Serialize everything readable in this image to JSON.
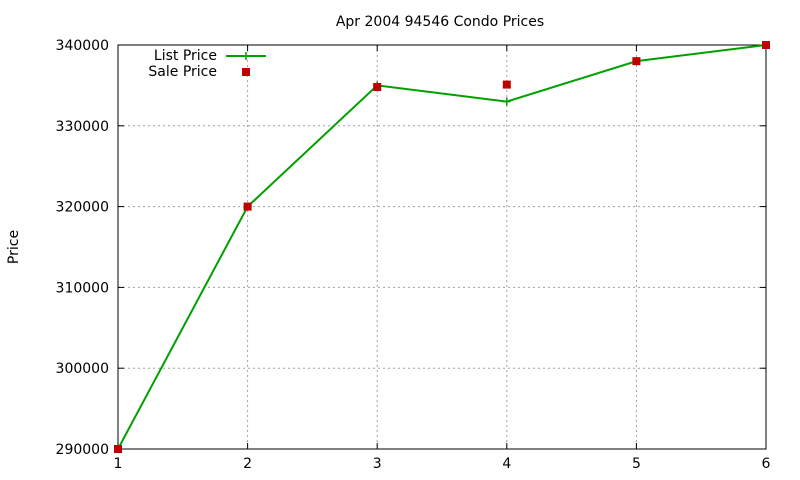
{
  "chart_data": {
    "type": "line",
    "title": "Apr 2004 94546 Condo Prices",
    "xlabel": "",
    "ylabel": "Price",
    "xlim": [
      1,
      6
    ],
    "ylim": [
      290000,
      340000
    ],
    "xticks": [
      "1",
      "2",
      "3",
      "4",
      "5",
      "6"
    ],
    "yticks": [
      "290000",
      "300000",
      "310000",
      "320000",
      "330000",
      "340000"
    ],
    "grid": true,
    "legend_position": "top-left",
    "series": [
      {
        "name": "List Price",
        "style": "line",
        "color": "#00a000",
        "marker": "plus",
        "points": [
          {
            "x": 1,
            "y": 290000
          },
          {
            "x": 2,
            "y": 320000
          },
          {
            "x": 3,
            "y": 335000
          },
          {
            "x": 4,
            "y": 333000
          },
          {
            "x": 5,
            "y": 338000
          },
          {
            "x": 6,
            "y": 340000
          }
        ]
      },
      {
        "name": "Sale Price",
        "style": "points",
        "color": "#c00000",
        "marker": "square",
        "points": [
          {
            "x": 1,
            "y": 290000
          },
          {
            "x": 2,
            "y": 320000
          },
          {
            "x": 3,
            "y": 334800
          },
          {
            "x": 4,
            "y": 335100
          },
          {
            "x": 5,
            "y": 338000
          },
          {
            "x": 6,
            "y": 340000
          }
        ]
      }
    ]
  }
}
